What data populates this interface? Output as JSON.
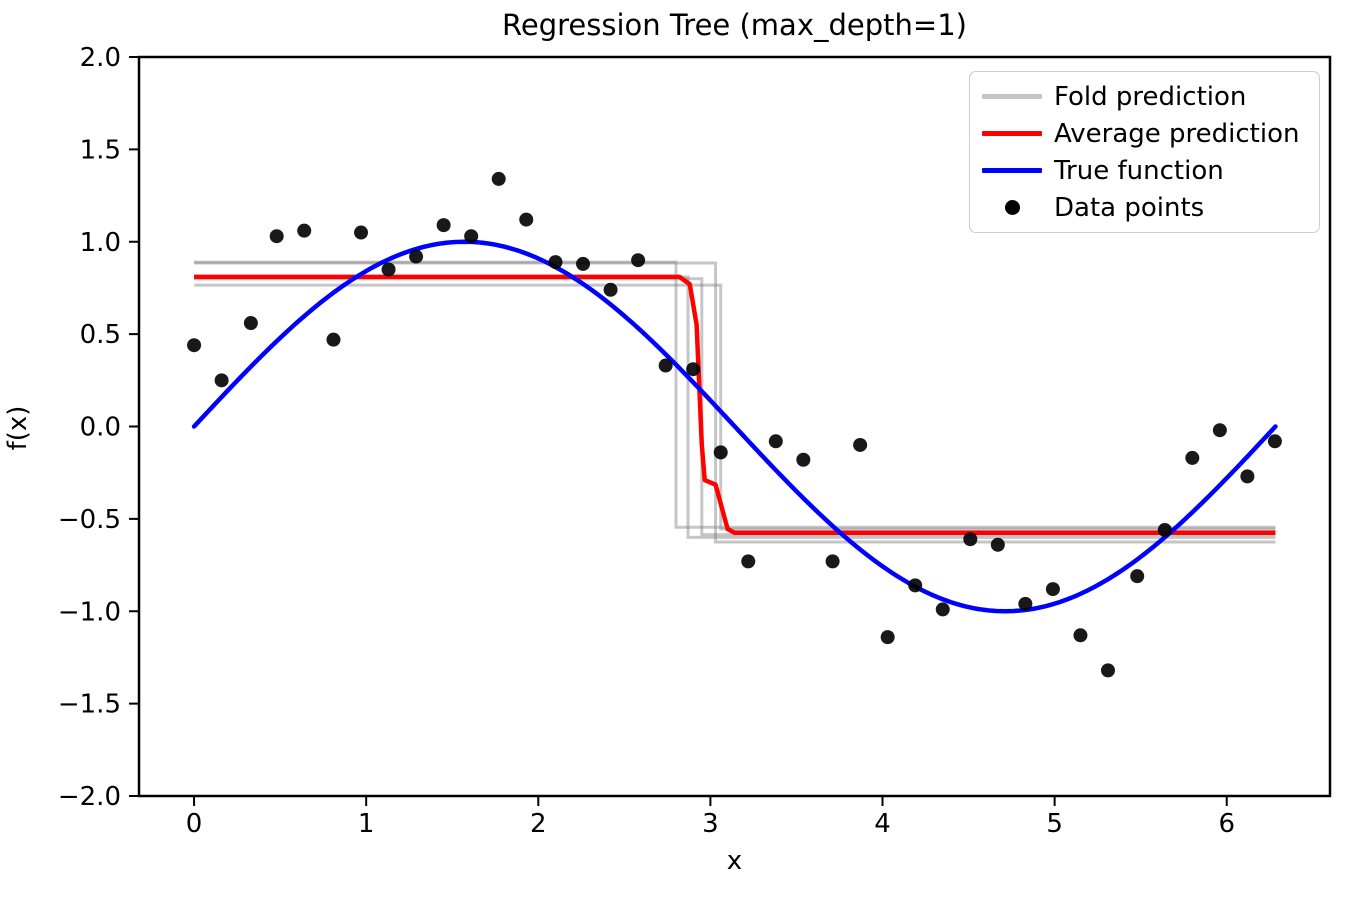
{
  "figure": {
    "title": "Regression Tree (max_depth=1)",
    "xlabel": "x",
    "ylabel": "f(x)"
  },
  "legend": {
    "position": "upper right",
    "items": [
      {
        "label": "Fold prediction",
        "swatch": "line",
        "color": "#c4c4c4"
      },
      {
        "label": "Average prediction",
        "swatch": "line",
        "color": "#ff0000"
      },
      {
        "label": "True function",
        "swatch": "line",
        "color": "#0000ff"
      },
      {
        "label": "Data points",
        "swatch": "marker",
        "color": "#000000"
      }
    ]
  },
  "chart_data": {
    "type": "line",
    "title": "Regression Tree (max_depth=1)",
    "xlabel": "x",
    "ylabel": "f(x)",
    "xlim": [
      -0.32,
      6.6
    ],
    "ylim": [
      -2.0,
      2.0
    ],
    "grid": false,
    "legend_position": "upper right",
    "x_ticks": [
      0,
      1,
      2,
      3,
      4,
      5,
      6
    ],
    "x_tick_labels": [
      "0",
      "1",
      "2",
      "3",
      "4",
      "5",
      "6"
    ],
    "y_ticks": [
      2.0,
      1.5,
      1.0,
      0.5,
      0.0,
      -0.5,
      -1.0,
      -1.5,
      -2.0
    ],
    "y_tick_labels": [
      "2.0",
      "1.5",
      "1.0",
      "0.5",
      "0.0",
      "−0.5",
      "−1.0",
      "−1.5",
      "−2.0"
    ],
    "series": [
      {
        "name": "Fold prediction",
        "kind": "step-folds",
        "color": "#808080",
        "opacity": 0.45,
        "width": 3,
        "x_start": 0,
        "x_end": 6.2832,
        "folds": [
          {
            "high": 0.89,
            "threshold": 2.8,
            "low": -0.545
          },
          {
            "high": 0.885,
            "threshold": 3.03,
            "low": -0.625
          },
          {
            "high": 0.765,
            "threshold": 3.06,
            "low": -0.555
          },
          {
            "high": 0.81,
            "threshold": 2.87,
            "low": -0.6
          },
          {
            "high": 0.8,
            "threshold": 2.95,
            "low": -0.585
          }
        ]
      },
      {
        "name": "Average prediction",
        "kind": "polyline",
        "color": "#ff0000",
        "opacity": 1,
        "width": 4.5,
        "points": [
          [
            0,
            0.81
          ],
          [
            2.82,
            0.81
          ],
          [
            2.88,
            0.77
          ],
          [
            2.92,
            0.55
          ],
          [
            2.95,
            -0.1
          ],
          [
            2.967,
            -0.29
          ],
          [
            3.03,
            -0.315
          ],
          [
            3.1,
            -0.555
          ],
          [
            3.14,
            -0.575
          ],
          [
            6.2832,
            -0.575
          ]
        ]
      },
      {
        "name": "True function",
        "kind": "function",
        "color": "#0000ff",
        "opacity": 1,
        "width": 4.5,
        "function": "sin(x)",
        "x_start": 0,
        "x_end": 6.2832,
        "samples": 240
      },
      {
        "name": "Data points",
        "kind": "scatter",
        "color": "#000000",
        "opacity": 0.9,
        "radius": 7,
        "points": [
          [
            0.0,
            0.44
          ],
          [
            0.16,
            0.25
          ],
          [
            0.33,
            0.56
          ],
          [
            0.48,
            1.03
          ],
          [
            0.64,
            1.06
          ],
          [
            0.81,
            0.47
          ],
          [
            0.97,
            1.05
          ],
          [
            1.13,
            0.85
          ],
          [
            1.29,
            0.92
          ],
          [
            1.45,
            1.09
          ],
          [
            1.61,
            1.03
          ],
          [
            1.77,
            1.34
          ],
          [
            1.93,
            1.12
          ],
          [
            2.1,
            0.89
          ],
          [
            2.26,
            0.88
          ],
          [
            2.42,
            0.74
          ],
          [
            2.58,
            0.9
          ],
          [
            2.74,
            0.33
          ],
          [
            2.9,
            0.31
          ],
          [
            3.06,
            -0.14
          ],
          [
            3.22,
            -0.73
          ],
          [
            3.38,
            -0.08
          ],
          [
            3.54,
            -0.18
          ],
          [
            3.71,
            -0.73
          ],
          [
            3.87,
            -0.1
          ],
          [
            4.03,
            -1.14
          ],
          [
            4.19,
            -0.86
          ],
          [
            4.35,
            -0.99
          ],
          [
            4.51,
            -0.61
          ],
          [
            4.67,
            -0.64
          ],
          [
            4.83,
            -0.96
          ],
          [
            4.99,
            -0.88
          ],
          [
            5.15,
            -1.13
          ],
          [
            5.31,
            -1.32
          ],
          [
            5.48,
            -0.81
          ],
          [
            5.64,
            -0.56
          ],
          [
            5.8,
            -0.17
          ],
          [
            5.96,
            -0.02
          ],
          [
            6.12,
            -0.27
          ],
          [
            6.28,
            -0.08
          ]
        ]
      }
    ]
  }
}
